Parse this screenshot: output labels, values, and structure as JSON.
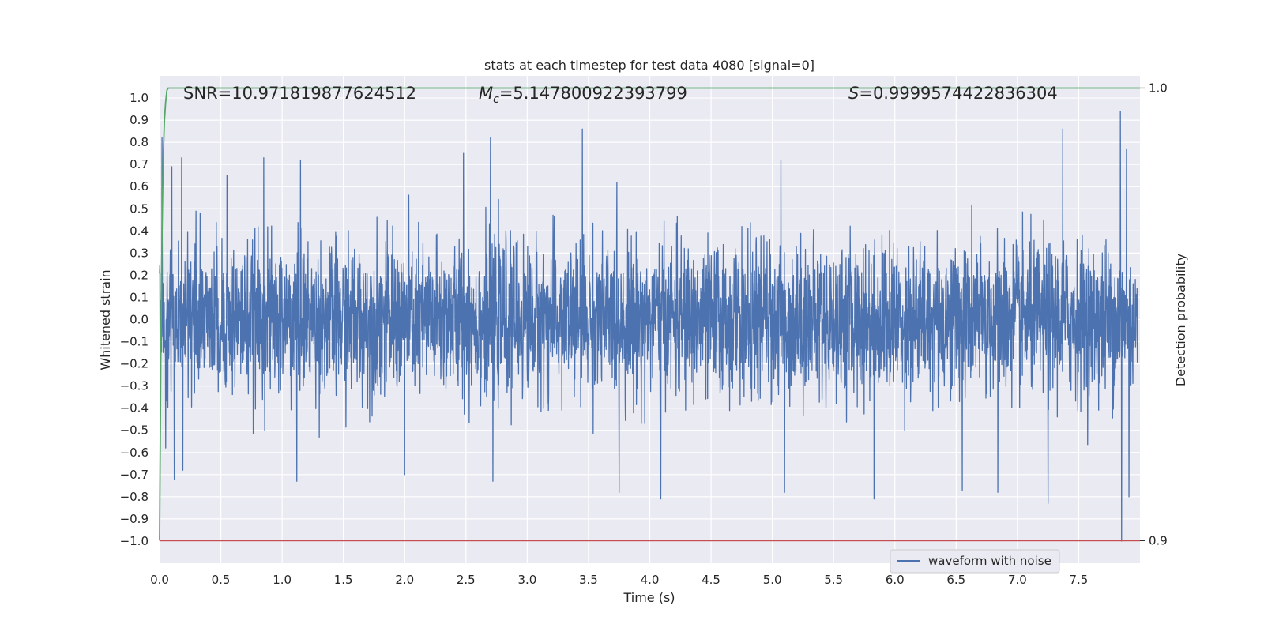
{
  "chart_data": {
    "type": "line",
    "title": "stats at each timestep for test data 4080 [signal=0]",
    "xlabel": "Time (s)",
    "ylabel": "Whitened strain",
    "y2label": "Detection probability",
    "xlim": [
      0.0,
      8.0
    ],
    "ylim": [
      -1.1,
      1.1
    ],
    "y2lim": [
      0.895,
      1.0027
    ],
    "x_ticks": [
      "0.0",
      "0.5",
      "1.0",
      "1.5",
      "2.0",
      "2.5",
      "3.0",
      "3.5",
      "4.0",
      "4.5",
      "5.0",
      "5.5",
      "6.0",
      "6.5",
      "7.0",
      "7.5"
    ],
    "y_ticks": [
      "1.0",
      "0.9",
      "0.8",
      "0.7",
      "0.6",
      "0.5",
      "0.4",
      "0.3",
      "0.2",
      "0.1",
      "0.0",
      "−0.1",
      "−0.2",
      "−0.3",
      "−0.4",
      "−0.5",
      "−0.6",
      "−0.7",
      "−0.8",
      "−0.9",
      "−1.0"
    ],
    "y2_ticks": [
      "1.0",
      "0.9"
    ],
    "grid": true,
    "legend_placement": "lower-right",
    "annotations": {
      "snr_label": "SNR=10.971819877624512",
      "mc_label_prefix": "M",
      "mc_label_sub": "c",
      "mc_label_value": "=5.147800922393799",
      "s_label_prefix": "S",
      "s_label_value": "=0.9999574422836304"
    },
    "series": [
      {
        "name": "waveform with noise",
        "axis": "left",
        "color": "#4c72b0",
        "description_stats": {
          "noise_std": 0.17,
          "min": -1.0,
          "max": 0.94
        },
        "peaks": [
          {
            "x": 0.02,
            "y": 0.82
          },
          {
            "x": 0.05,
            "y": -0.58
          },
          {
            "x": 0.1,
            "y": 0.69
          },
          {
            "x": 0.12,
            "y": -0.72
          },
          {
            "x": 0.18,
            "y": 0.73
          },
          {
            "x": 0.19,
            "y": -0.68
          },
          {
            "x": 0.55,
            "y": 0.65
          },
          {
            "x": 0.85,
            "y": 0.73
          },
          {
            "x": 1.12,
            "y": -0.73
          },
          {
            "x": 1.15,
            "y": 0.72
          },
          {
            "x": 2.0,
            "y": -0.7
          },
          {
            "x": 2.48,
            "y": 0.75
          },
          {
            "x": 2.7,
            "y": 0.82
          },
          {
            "x": 2.72,
            "y": -0.73
          },
          {
            "x": 3.45,
            "y": 0.86
          },
          {
            "x": 3.75,
            "y": -0.78
          },
          {
            "x": 4.09,
            "y": -0.81
          },
          {
            "x": 5.07,
            "y": 0.72
          },
          {
            "x": 5.1,
            "y": -0.78
          },
          {
            "x": 5.83,
            "y": -0.81
          },
          {
            "x": 6.55,
            "y": -0.77
          },
          {
            "x": 6.84,
            "y": -0.78
          },
          {
            "x": 7.25,
            "y": -0.83
          },
          {
            "x": 7.37,
            "y": 0.86
          },
          {
            "x": 7.84,
            "y": 0.94
          },
          {
            "x": 7.85,
            "y": -1.0
          },
          {
            "x": 7.89,
            "y": 0.77
          },
          {
            "x": 7.91,
            "y": -0.8
          }
        ]
      },
      {
        "name": "",
        "axis": "right",
        "color": "#55a868",
        "x": [
          0.0,
          0.01,
          0.02,
          0.03,
          0.04,
          0.05,
          0.06,
          0.07,
          0.08,
          0.1,
          0.5,
          1.0,
          2.0,
          3.0,
          4.0,
          5.0,
          6.0,
          7.0,
          8.0
        ],
        "y": [
          0.9,
          0.94,
          0.968,
          0.985,
          0.993,
          0.997,
          0.9995,
          0.99998,
          0.99999,
          1.0,
          1.0,
          1.0,
          1.0,
          1.0,
          1.0,
          1.0,
          1.0,
          1.0,
          1.0
        ]
      },
      {
        "name": "",
        "axis": "right",
        "color": "#c44e52",
        "x": [
          0.0,
          8.0
        ],
        "y": [
          0.9,
          0.9
        ]
      }
    ]
  }
}
